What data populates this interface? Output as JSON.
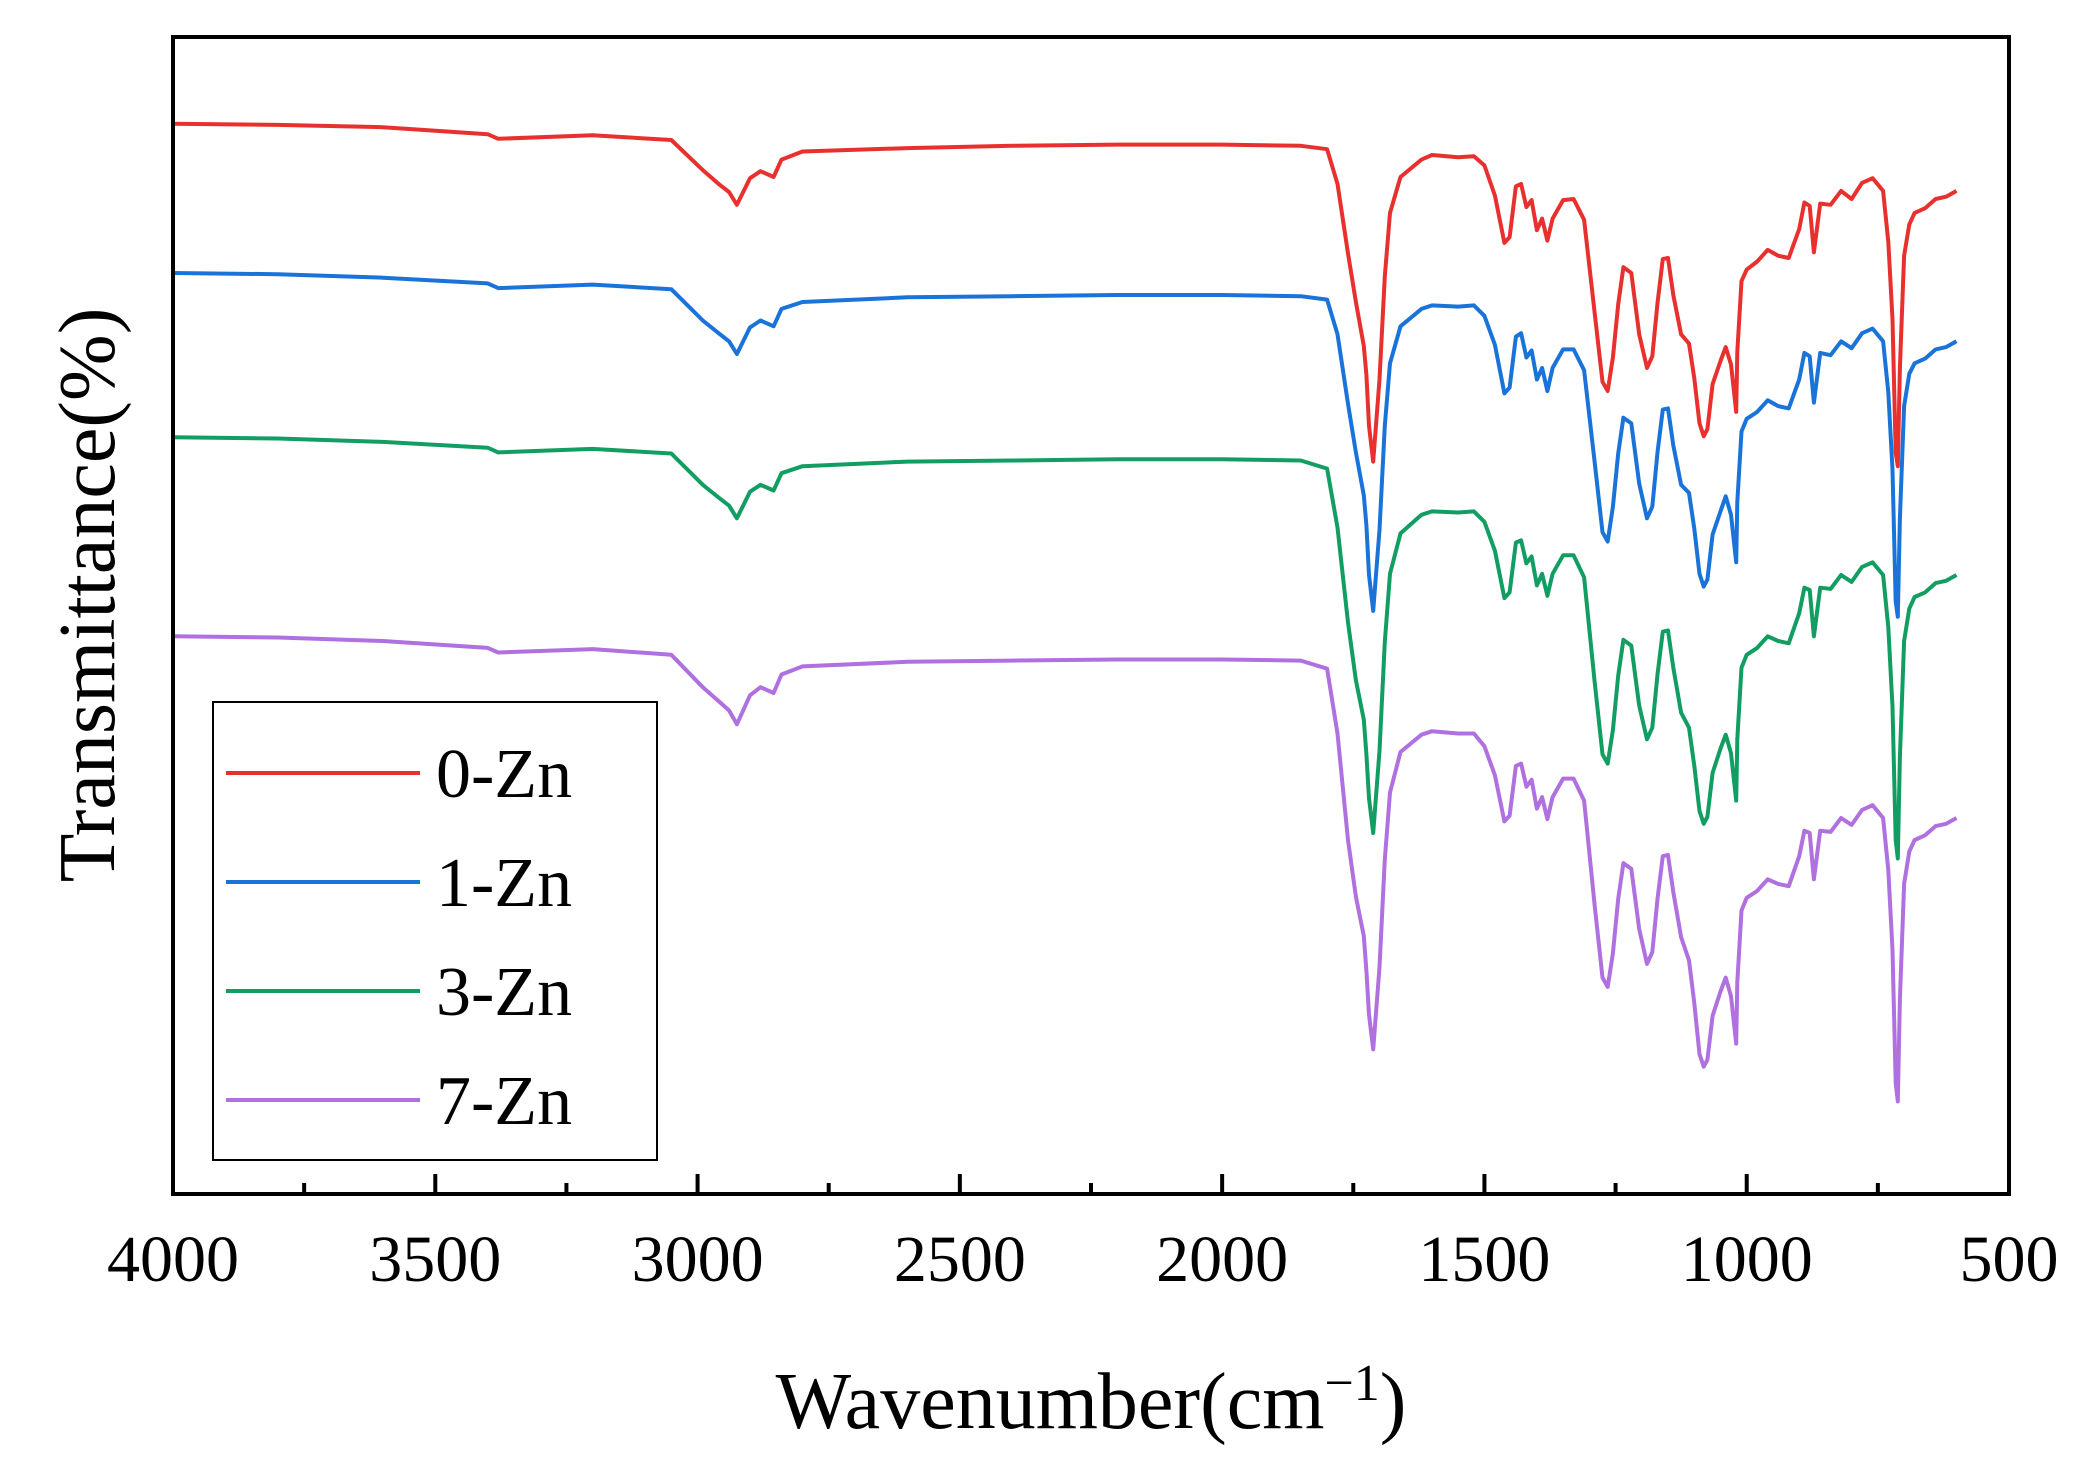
{
  "chart_data": {
    "type": "line",
    "title": "",
    "xlabel": "Wavenumber(cm",
    "xlabel_superscript": "−1",
    "xlabel_close": ")",
    "ylabel": "Transmittance(%)",
    "xlim": [
      4000,
      500
    ],
    "ylim": [
      0,
      100
    ],
    "x_ticks": [
      4000,
      3500,
      3000,
      2500,
      2000,
      1500,
      1000,
      500
    ],
    "x_tick_labels": [
      "4000",
      "3500",
      "3000",
      "2500",
      "2000",
      "1500",
      "1000",
      "500"
    ],
    "y_ticks_visible": false,
    "grid": false,
    "legend_position": "bottom-left",
    "series": [
      {
        "name": "0-Zn",
        "color": "#e8312e",
        "x": [
          4000,
          3800,
          3600,
          3400,
          3380,
          3200,
          3050,
          2990,
          2960,
          2940,
          2925,
          2900,
          2880,
          2855,
          2840,
          2800,
          2600,
          2400,
          2200,
          2000,
          1850,
          1800,
          1780,
          1760,
          1745,
          1730,
          1725,
          1720,
          1712,
          1700,
          1690,
          1680,
          1660,
          1620,
          1600,
          1550,
          1520,
          1500,
          1480,
          1462,
          1452,
          1440,
          1430,
          1420,
          1410,
          1400,
          1390,
          1380,
          1370,
          1350,
          1330,
          1310,
          1290,
          1275,
          1265,
          1255,
          1245,
          1235,
          1220,
          1205,
          1190,
          1180,
          1170,
          1160,
          1150,
          1140,
          1125,
          1110,
          1100,
          1090,
          1082,
          1075,
          1065,
          1050,
          1040,
          1030,
          1020,
          1018,
          1010,
          1000,
          980,
          960,
          940,
          920,
          900,
          890,
          880,
          872,
          860,
          840,
          820,
          800,
          780,
          760,
          740,
          730,
          722,
          716,
          712,
          708,
          700,
          690,
          680,
          660,
          640,
          620,
          600
        ],
        "y": [
          92.5,
          92.4,
          92.2,
          91.6,
          91.2,
          91.5,
          91.1,
          88.5,
          87.3,
          86.6,
          85.5,
          87.8,
          88.4,
          87.9,
          89.4,
          90.1,
          90.4,
          90.6,
          90.7,
          90.7,
          90.6,
          90.3,
          87.3,
          81.3,
          77.1,
          73.3,
          70.8,
          66.4,
          63.3,
          70.4,
          79.3,
          84.8,
          87.9,
          89.4,
          89.8,
          89.6,
          89.7,
          88.9,
          86.3,
          82.2,
          82.7,
          87.1,
          87.3,
          85.3,
          85.9,
          83.3,
          84.3,
          82.4,
          84.3,
          85.9,
          86.0,
          84.2,
          76.2,
          70.2,
          69.4,
          72.3,
          76.9,
          80.1,
          79.6,
          74.3,
          71.4,
          72.4,
          77.0,
          80.8,
          80.9,
          77.7,
          74.3,
          73.5,
          70.5,
          66.6,
          65.5,
          66.1,
          70.0,
          72.0,
          73.2,
          71.7,
          67.6,
          72.8,
          78.9,
          79.9,
          80.6,
          81.6,
          81.1,
          80.9,
          83.4,
          85.7,
          85.4,
          81.4,
          85.6,
          85.5,
          86.7,
          86.0,
          87.4,
          87.8,
          86.7,
          82.3,
          75.6,
          64.1,
          62.9,
          71.4,
          81.1,
          83.8,
          84.8,
          85.2,
          86.0,
          86.2,
          86.7
        ]
      },
      {
        "name": "1-Zn",
        "color": "#1a73d9",
        "x": [
          4000,
          3800,
          3600,
          3400,
          3380,
          3200,
          3050,
          2990,
          2960,
          2940,
          2925,
          2900,
          2880,
          2855,
          2840,
          2800,
          2600,
          2400,
          2200,
          2000,
          1850,
          1800,
          1780,
          1760,
          1745,
          1730,
          1725,
          1720,
          1712,
          1700,
          1690,
          1680,
          1660,
          1620,
          1600,
          1550,
          1520,
          1500,
          1480,
          1462,
          1452,
          1440,
          1430,
          1420,
          1410,
          1400,
          1390,
          1380,
          1370,
          1350,
          1330,
          1310,
          1290,
          1275,
          1265,
          1255,
          1245,
          1235,
          1220,
          1205,
          1190,
          1180,
          1170,
          1160,
          1150,
          1140,
          1125,
          1110,
          1100,
          1090,
          1082,
          1075,
          1065,
          1050,
          1040,
          1030,
          1020,
          1018,
          1010,
          1000,
          980,
          960,
          940,
          920,
          900,
          890,
          880,
          872,
          860,
          840,
          820,
          800,
          780,
          760,
          740,
          730,
          722,
          716,
          712,
          708,
          700,
          690,
          680,
          660,
          640,
          620,
          600
        ],
        "y": [
          79.6,
          79.5,
          79.2,
          78.7,
          78.3,
          78.6,
          78.2,
          75.5,
          74.4,
          73.7,
          72.6,
          74.9,
          75.5,
          75.0,
          76.5,
          77.1,
          77.5,
          77.6,
          77.7,
          77.7,
          77.6,
          77.3,
          74.3,
          68.3,
          64.1,
          60.4,
          57.8,
          53.5,
          50.4,
          57.4,
          66.4,
          71.8,
          75.0,
          76.5,
          76.8,
          76.7,
          76.8,
          75.9,
          73.4,
          69.2,
          69.7,
          74.1,
          74.4,
          72.3,
          72.9,
          70.4,
          71.4,
          69.4,
          71.4,
          73.0,
          73.0,
          71.2,
          63.3,
          57.2,
          56.4,
          59.4,
          64.0,
          67.1,
          66.6,
          61.4,
          58.4,
          59.4,
          64.1,
          67.8,
          67.9,
          64.7,
          61.3,
          60.6,
          57.5,
          53.6,
          52.5,
          53.1,
          57.0,
          59.0,
          60.3,
          58.7,
          54.6,
          59.8,
          65.9,
          67.0,
          67.6,
          68.6,
          68.1,
          67.9,
          70.4,
          72.7,
          72.4,
          68.4,
          72.7,
          72.5,
          73.7,
          73.1,
          74.4,
          74.8,
          73.7,
          69.3,
          62.6,
          51.2,
          49.9,
          58.4,
          68.1,
          70.9,
          71.8,
          72.2,
          73.0,
          73.2,
          73.7
        ]
      },
      {
        "name": "3-Zn",
        "color": "#129e62",
        "x": [
          4000,
          3800,
          3600,
          3400,
          3380,
          3200,
          3050,
          2990,
          2960,
          2940,
          2925,
          2900,
          2880,
          2855,
          2840,
          2800,
          2600,
          2400,
          2200,
          2000,
          1850,
          1800,
          1780,
          1760,
          1745,
          1730,
          1725,
          1720,
          1712,
          1700,
          1690,
          1680,
          1660,
          1620,
          1600,
          1550,
          1520,
          1500,
          1480,
          1462,
          1452,
          1440,
          1430,
          1420,
          1410,
          1400,
          1390,
          1380,
          1370,
          1350,
          1330,
          1310,
          1290,
          1275,
          1265,
          1255,
          1245,
          1235,
          1220,
          1205,
          1190,
          1180,
          1170,
          1160,
          1150,
          1140,
          1125,
          1110,
          1100,
          1090,
          1082,
          1075,
          1065,
          1050,
          1040,
          1030,
          1020,
          1018,
          1010,
          1000,
          980,
          960,
          940,
          920,
          900,
          890,
          880,
          872,
          860,
          840,
          820,
          800,
          780,
          760,
          740,
          730,
          722,
          716,
          712,
          708,
          700,
          690,
          680,
          660,
          640,
          620,
          600
        ],
        "y": [
          65.4,
          65.3,
          65.0,
          64.5,
          64.1,
          64.4,
          64.0,
          61.3,
          60.2,
          59.5,
          58.4,
          60.7,
          61.3,
          60.8,
          62.3,
          62.9,
          63.3,
          63.4,
          63.5,
          63.5,
          63.4,
          62.7,
          57.6,
          49.4,
          44.4,
          41.0,
          38.0,
          34.2,
          31.2,
          38.3,
          47.7,
          53.6,
          57.1,
          58.7,
          59.0,
          58.9,
          59.0,
          58.1,
          55.6,
          51.5,
          52.0,
          56.3,
          56.5,
          54.5,
          55.1,
          52.6,
          53.6,
          51.7,
          53.6,
          55.2,
          55.2,
          53.3,
          44.3,
          38.0,
          37.2,
          40.1,
          44.8,
          47.9,
          47.4,
          42.2,
          39.3,
          40.3,
          44.9,
          48.6,
          48.7,
          45.5,
          41.6,
          40.3,
          37.0,
          33.1,
          32.0,
          32.6,
          36.4,
          38.5,
          39.7,
          38.1,
          34.0,
          39.3,
          45.5,
          46.6,
          47.2,
          48.2,
          47.8,
          47.6,
          50.2,
          52.4,
          52.2,
          48.2,
          52.4,
          52.3,
          53.5,
          52.9,
          54.2,
          54.6,
          53.5,
          49.0,
          42.1,
          30.6,
          29.0,
          37.8,
          47.8,
          50.6,
          51.6,
          52.0,
          52.8,
          53.0,
          53.5
        ]
      },
      {
        "name": "7-Zn",
        "color": "#b070e0",
        "x": [
          4000,
          3800,
          3600,
          3400,
          3380,
          3200,
          3050,
          2990,
          2960,
          2940,
          2925,
          2900,
          2880,
          2855,
          2840,
          2800,
          2600,
          2400,
          2200,
          2000,
          1850,
          1800,
          1780,
          1760,
          1745,
          1730,
          1725,
          1720,
          1712,
          1700,
          1690,
          1680,
          1660,
          1620,
          1600,
          1550,
          1520,
          1500,
          1480,
          1462,
          1452,
          1440,
          1430,
          1420,
          1410,
          1400,
          1390,
          1380,
          1370,
          1350,
          1330,
          1310,
          1290,
          1275,
          1265,
          1255,
          1245,
          1235,
          1220,
          1205,
          1190,
          1180,
          1170,
          1160,
          1150,
          1140,
          1125,
          1110,
          1100,
          1090,
          1082,
          1075,
          1065,
          1050,
          1040,
          1030,
          1020,
          1018,
          1010,
          1000,
          980,
          960,
          940,
          920,
          900,
          890,
          880,
          872,
          860,
          840,
          820,
          800,
          780,
          760,
          740,
          730,
          722,
          716,
          712,
          708,
          700,
          690,
          680,
          660,
          640,
          620,
          600
        ],
        "y": [
          48.2,
          48.1,
          47.8,
          47.2,
          46.8,
          47.1,
          46.6,
          43.8,
          42.6,
          41.8,
          40.6,
          43.1,
          43.8,
          43.3,
          44.9,
          45.6,
          46.0,
          46.1,
          46.2,
          46.2,
          46.1,
          45.4,
          39.8,
          30.6,
          25.7,
          22.3,
          19.3,
          15.5,
          12.5,
          19.6,
          28.9,
          34.7,
          38.2,
          39.7,
          40.0,
          39.8,
          39.8,
          38.7,
          36.2,
          32.2,
          32.7,
          37.0,
          37.2,
          35.2,
          35.8,
          33.3,
          34.3,
          32.4,
          34.3,
          35.9,
          35.9,
          34.0,
          25.0,
          18.7,
          17.9,
          20.8,
          25.5,
          28.6,
          28.1,
          22.9,
          19.9,
          20.9,
          25.5,
          29.2,
          29.3,
          26.1,
          22.2,
          20.2,
          16.5,
          12.1,
          11.0,
          11.6,
          15.4,
          17.5,
          18.7,
          17.1,
          13.0,
          18.3,
          24.5,
          25.6,
          26.2,
          27.2,
          26.8,
          26.6,
          29.2,
          31.4,
          31.2,
          27.2,
          31.4,
          31.3,
          32.5,
          31.9,
          33.2,
          33.6,
          32.5,
          28.0,
          21.1,
          9.6,
          8.0,
          16.8,
          26.8,
          29.6,
          30.6,
          31.0,
          31.8,
          32.0,
          32.5
        ]
      }
    ]
  }
}
